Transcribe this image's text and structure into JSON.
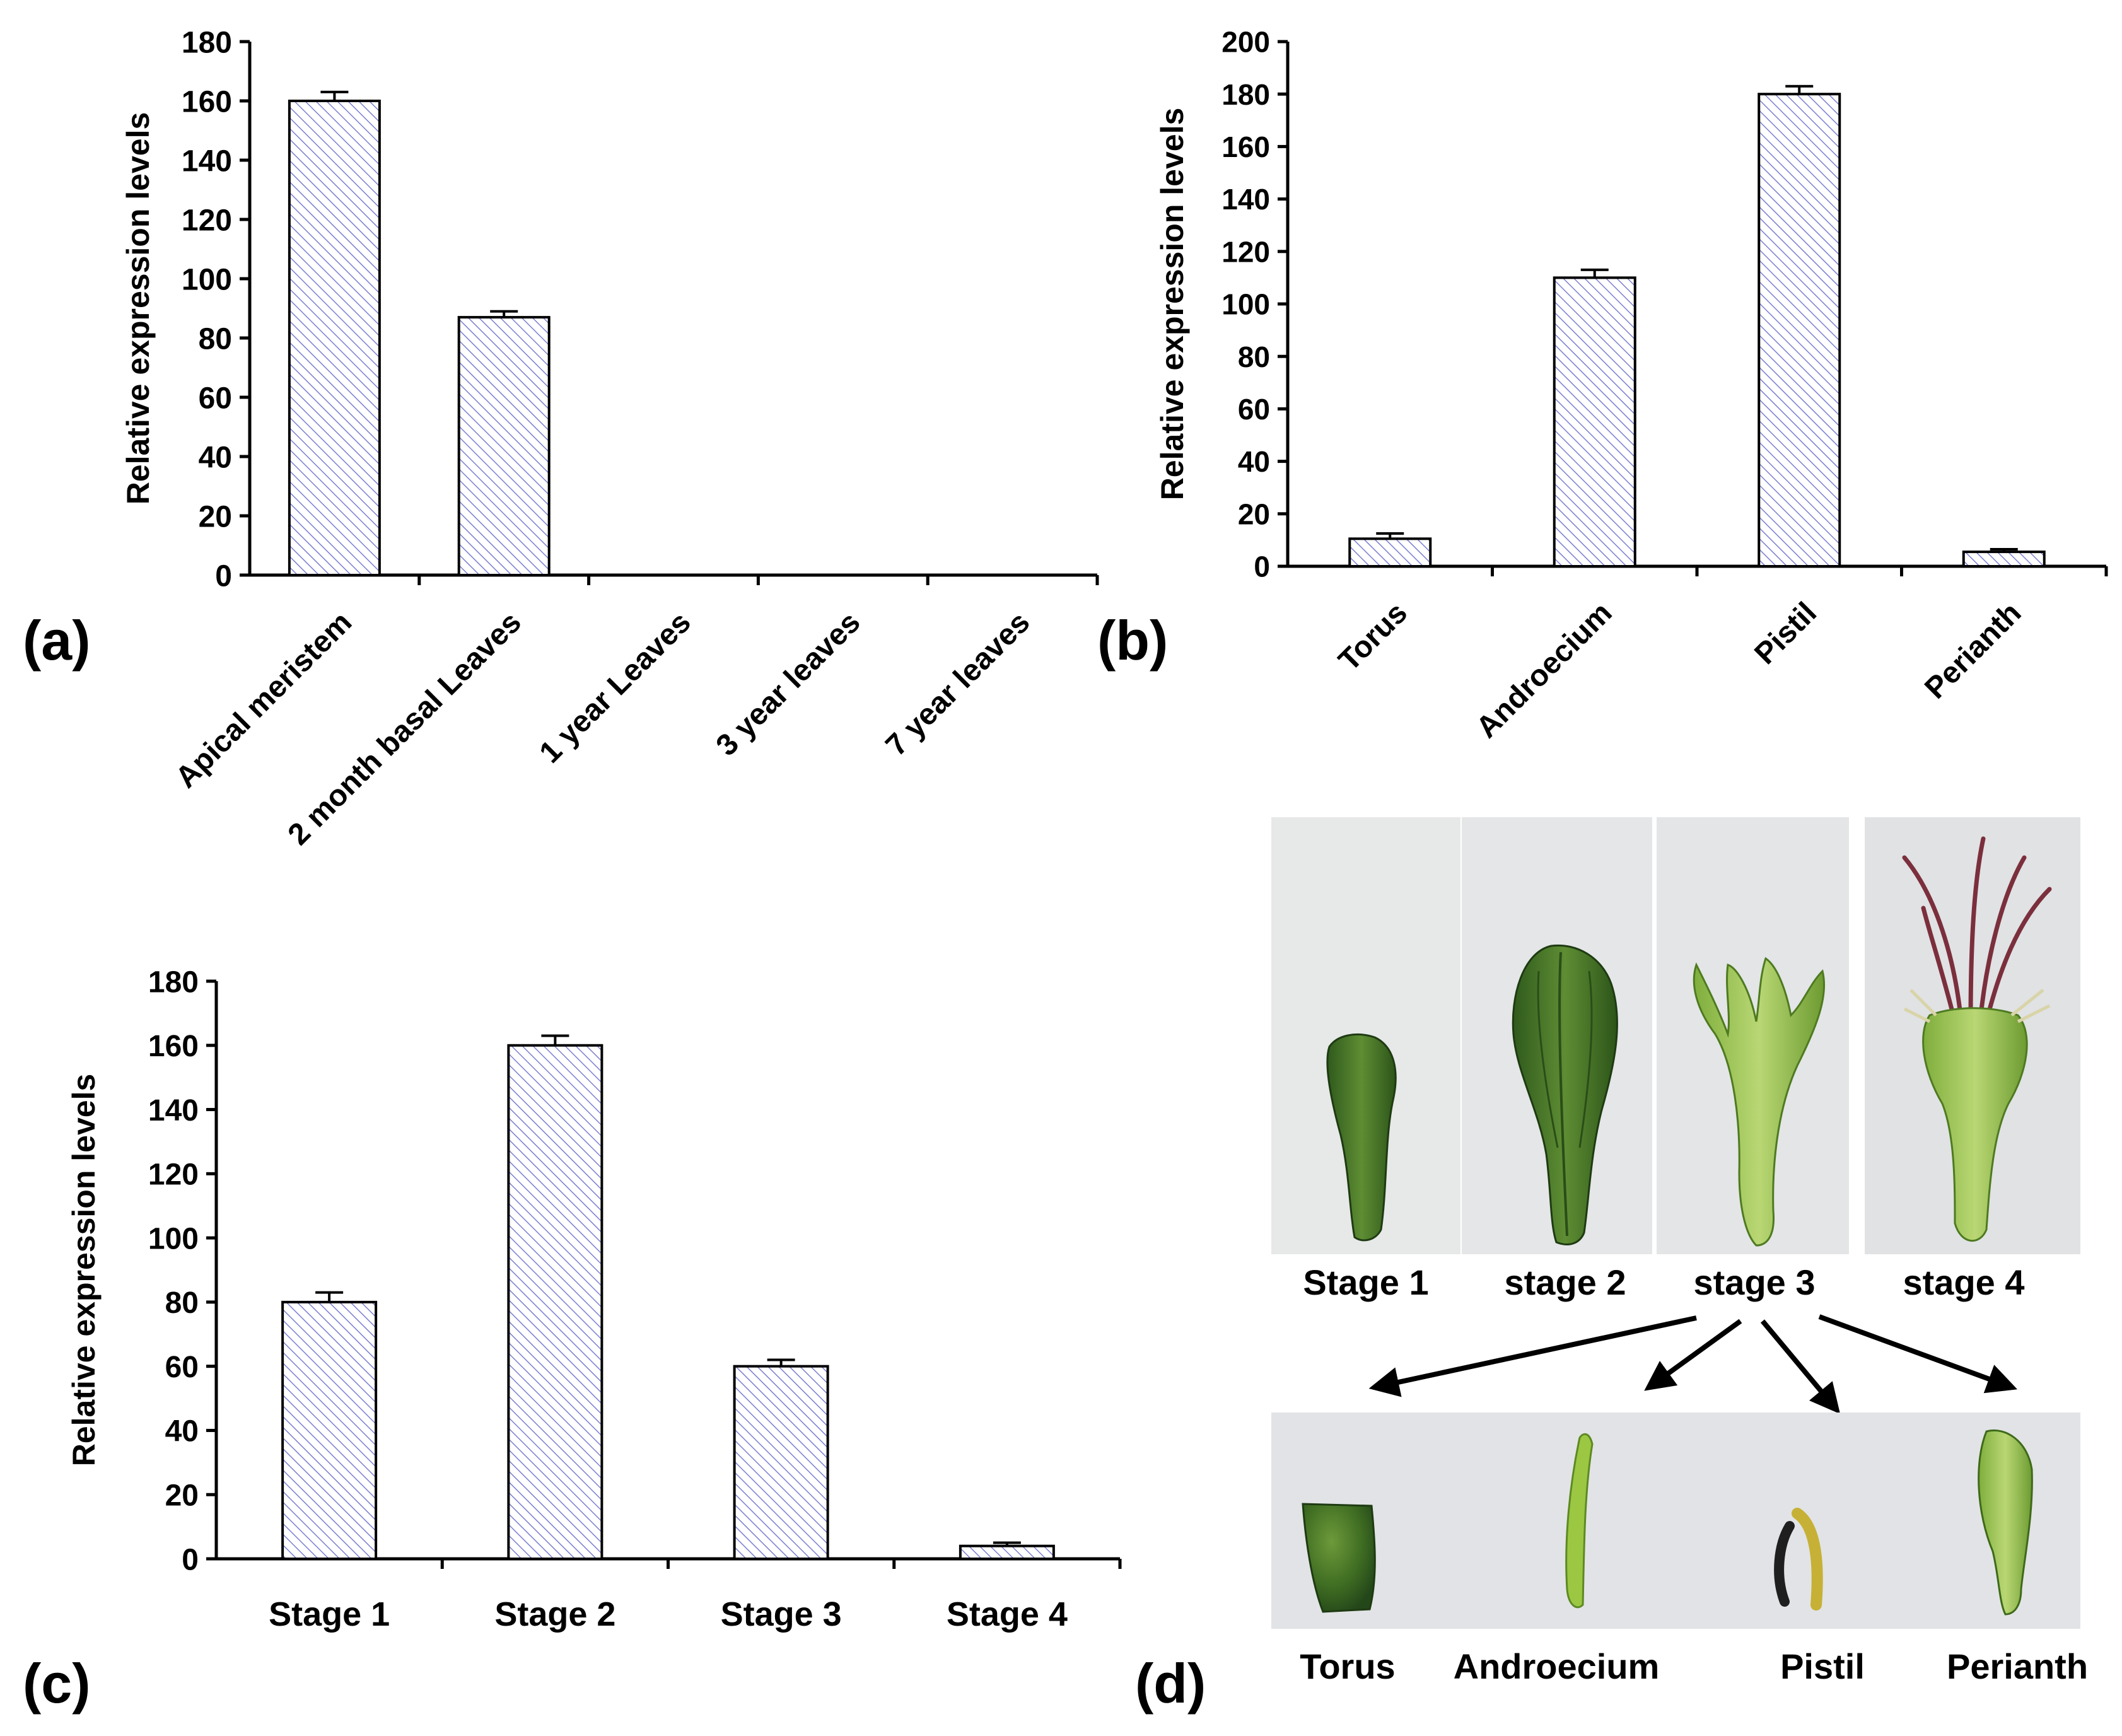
{
  "colors": {
    "axis": "#000000",
    "bar_edge": "#000000",
    "hatch": "#7b7fd1",
    "bar_fill": "#ffffff",
    "arrow": "#000000"
  },
  "chart_data": [
    {
      "id": "a",
      "panel_label": "(a)",
      "type": "bar",
      "title": "",
      "xlabel": "",
      "ylabel": "Relative expression levels",
      "categories": [
        "Apical meristem",
        "2 month basal Leaves",
        "1 year Leaves",
        "3 year leaves",
        "7 year leaves"
      ],
      "values": [
        160,
        87,
        0,
        0,
        0
      ],
      "errors": [
        3,
        2,
        0,
        0,
        0
      ],
      "ylim": [
        0,
        180
      ],
      "yticks": [
        0,
        20,
        40,
        60,
        80,
        100,
        120,
        140,
        160,
        180
      ],
      "grid": false,
      "label_rotation": -45
    },
    {
      "id": "b",
      "panel_label": "(b)",
      "type": "bar",
      "title": "",
      "xlabel": "",
      "ylabel": "Relative expression levels",
      "categories": [
        "Torus",
        "Androecium",
        "Pistil",
        "Perianth"
      ],
      "values": [
        10.5,
        110,
        180,
        5.5
      ],
      "errors": [
        2,
        3,
        3,
        1
      ],
      "ylim": [
        0,
        200
      ],
      "yticks": [
        0,
        20,
        40,
        60,
        80,
        100,
        120,
        140,
        160,
        180,
        200
      ],
      "grid": false,
      "label_rotation": -45
    },
    {
      "id": "c",
      "panel_label": "(c)",
      "type": "bar",
      "title": "",
      "xlabel": "",
      "ylabel": "Relative expression levels",
      "categories": [
        "Stage 1",
        "Stage 2",
        "Stage 3",
        "Stage 4"
      ],
      "values": [
        80,
        160,
        60,
        4
      ],
      "errors": [
        3,
        3,
        2,
        1
      ],
      "ylim": [
        0,
        180
      ],
      "yticks": [
        0,
        20,
        40,
        60,
        80,
        100,
        120,
        140,
        160,
        180
      ],
      "grid": false,
      "label_rotation": 0
    }
  ],
  "panel_d": {
    "label": "(d)",
    "stage_captions": [
      "Stage 1",
      "stage 2",
      "stage 3",
      "stage 4"
    ],
    "organ_captions": [
      "Torus",
      "Androecium",
      "Pistil",
      "Perianth"
    ]
  }
}
